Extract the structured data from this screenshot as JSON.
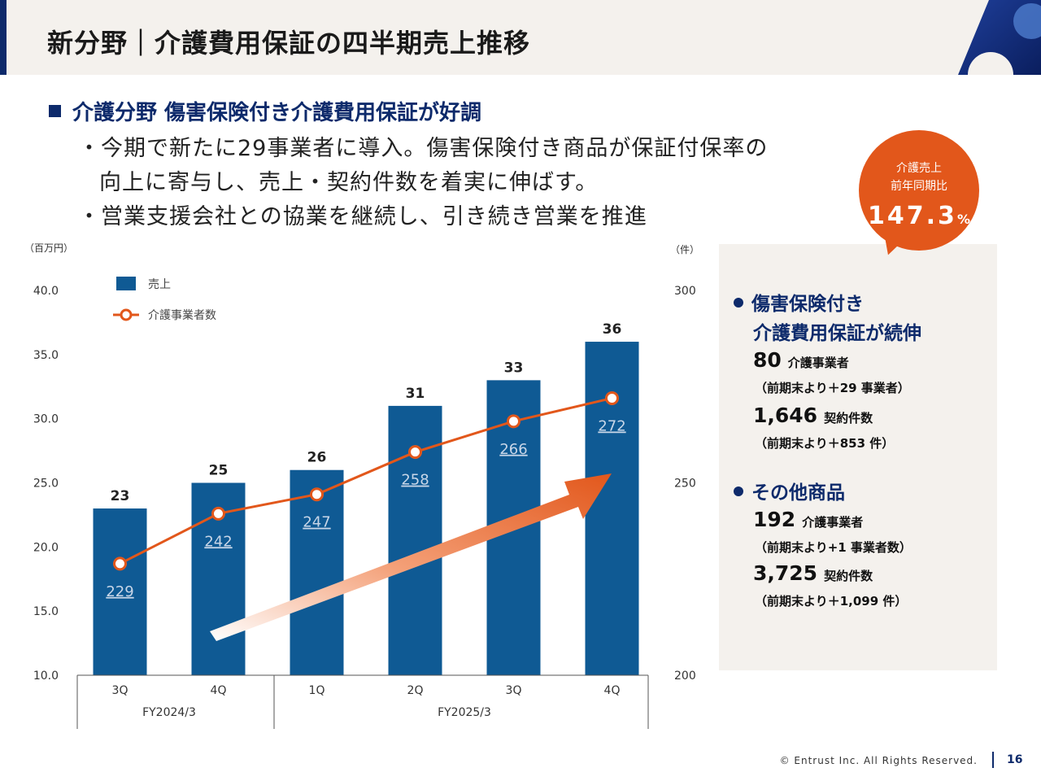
{
  "header": {
    "title": "新分野｜介護費用保証の四半期売上推移"
  },
  "summary": {
    "heading": "介護分野 傷害保険付き介護費用保証が好調",
    "lines": [
      "・今期で新たに29事業者に導入。傷害保険付き商品が保証付保率の",
      "向上に寄与し、売上・契約件数を着実に伸ばす。",
      "・営業支援会社との協業を継続し、引き続き営業を推進"
    ]
  },
  "badge": {
    "line1": "介護売上",
    "line2": "前年同期比",
    "value": "147.3",
    "unit": "%"
  },
  "panel": {
    "sections": [
      {
        "heading_lines": [
          "傷害保険付き",
          "介護費用保証が続伸"
        ],
        "stats": [
          {
            "value": "80",
            "unit": "介護事業者",
            "note": "（前期末より＋29 事業者）"
          },
          {
            "value": "1,646",
            "unit": "契約件数",
            "note": "（前期末より＋853 件）"
          }
        ]
      },
      {
        "heading_lines": [
          "その他商品"
        ],
        "stats": [
          {
            "value": "192",
            "unit": "介護事業者",
            "note": "（前期末より+1 事業者数）"
          },
          {
            "value": "3,725",
            "unit": "契約件数",
            "note": "（前期末より＋1,099 件）"
          }
        ]
      }
    ]
  },
  "chart_data": {
    "type": "bar",
    "categories": [
      "3Q",
      "4Q",
      "1Q",
      "2Q",
      "3Q",
      "4Q"
    ],
    "groups": [
      {
        "label": "FY2024/3",
        "count": 2
      },
      {
        "label": "FY2025/3",
        "count": 4
      }
    ],
    "series": [
      {
        "name": "売上",
        "type": "bar",
        "axis": "left",
        "values": [
          23,
          25,
          26,
          31,
          33,
          36
        ],
        "color": "#0f5a94"
      },
      {
        "name": "介護事業者数",
        "type": "line",
        "axis": "right",
        "values": [
          229,
          242,
          247,
          258,
          266,
          272
        ],
        "color": "#e2571b"
      }
    ],
    "ylabel_left": "（百万円）",
    "ylabel_right": "（件）",
    "ylim_left": [
      10,
      40
    ],
    "ylim_right": [
      200,
      300
    ],
    "yticks_left": [
      "10.0",
      "15.0",
      "20.0",
      "25.0",
      "30.0",
      "35.0",
      "40.0"
    ],
    "yticks_right": [
      "200",
      "250",
      "300"
    ],
    "legend_position": "top-left",
    "grid": false
  },
  "footer": {
    "copyright": "© Entrust Inc. All Rights Reserved.",
    "page": "16"
  }
}
